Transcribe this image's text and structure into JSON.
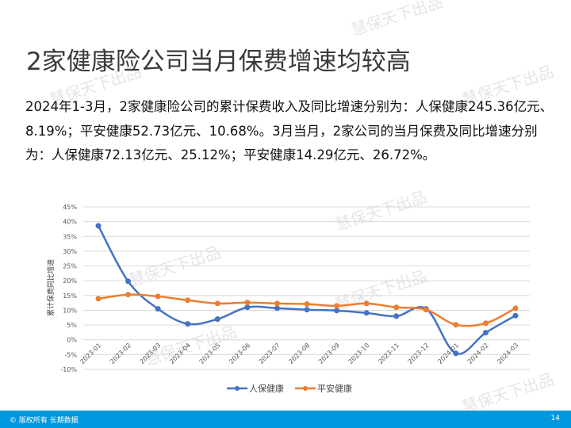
{
  "slide": {
    "title": "2家健康险公司当月保费增速均较高",
    "body": "2024年1-3月，2家健康险公司的累计保费收入及同比增速分别为：人保健康245.36亿元、8.19%；平安健康52.73亿元、10.68%。3月当月，2家公司的当月保费及同比增速分别为：人保健康72.13亿元、25.12%；平安健康14.29亿元、26.72%。",
    "watermark": "慧保天下出品",
    "page_number": "14",
    "footer_text": "© 版权所有 长期数据"
  },
  "chart_data": {
    "type": "line",
    "title": "",
    "xlabel": "",
    "ylabel": "累计保费同比增速",
    "ylim": [
      -10,
      45
    ],
    "yticks": [
      "-10%",
      "-5%",
      "0%",
      "5%",
      "10%",
      "15%",
      "20%",
      "25%",
      "30%",
      "35%",
      "40%",
      "45%"
    ],
    "grid": true,
    "legend": "bottom",
    "categories": [
      "2023-01",
      "2023-02",
      "2023-03",
      "2023-04",
      "2023-05",
      "2023-06",
      "2023-07",
      "2023-08",
      "2023-09",
      "2023-10",
      "2023-11",
      "2023-12",
      "2024-01",
      "2024-02",
      "2024-03"
    ],
    "series": [
      {
        "name": "人保健康",
        "color": "#4472c4",
        "values": [
          38.6,
          19.8,
          10.5,
          5.4,
          7.0,
          11.0,
          10.7,
          10.2,
          9.9,
          9.1,
          8.0,
          10.5,
          -4.6,
          2.4,
          8.19
        ]
      },
      {
        "name": "平安健康",
        "color": "#ed7d31",
        "values": [
          13.9,
          15.3,
          14.7,
          13.4,
          12.3,
          12.6,
          12.3,
          12.1,
          11.5,
          12.3,
          11.0,
          10.2,
          5.1,
          5.6,
          10.68
        ]
      }
    ]
  }
}
